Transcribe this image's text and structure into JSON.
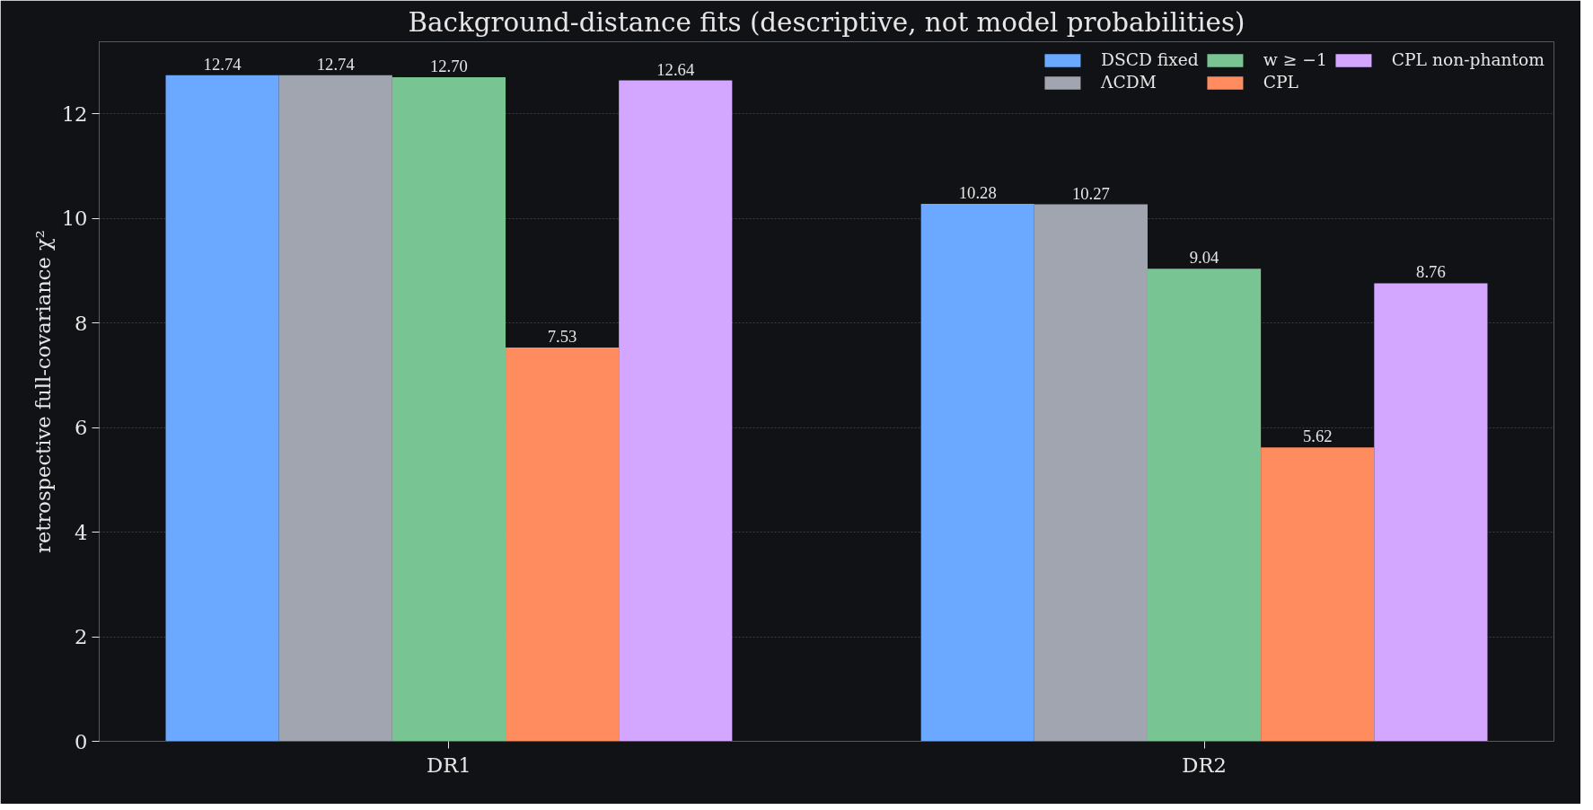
{
  "chart_data": {
    "type": "bar",
    "title": "Background-distance fits (descriptive, not model probabilities)",
    "ylabel": "retrospective full-covariance χ²",
    "categories": [
      "DR1",
      "DR2"
    ],
    "series": [
      {
        "name": "DSCD fixed",
        "color": "#6aa9ff",
        "values": [
          12.74,
          10.28
        ],
        "value_labels": [
          "12.74",
          "10.28"
        ]
      },
      {
        "name": "ΛCDM",
        "color": "#a0a5b0",
        "values": [
          12.74,
          10.27
        ],
        "value_labels": [
          "12.74",
          "10.27"
        ]
      },
      {
        "name": "w ≥ −1",
        "color": "#78c493",
        "values": [
          12.7,
          9.04
        ],
        "value_labels": [
          "12.70",
          "9.04"
        ]
      },
      {
        "name": "CPL",
        "color": "#ff8c5e",
        "values": [
          7.53,
          5.62
        ],
        "value_labels": [
          "7.53",
          "5.62"
        ]
      },
      {
        "name": "CPL non-phantom",
        "color": "#d3a6ff",
        "values": [
          12.64,
          8.76
        ],
        "value_labels": [
          "12.64",
          "8.76"
        ]
      }
    ],
    "ylim": [
      0,
      13.38
    ],
    "yticks": [
      0,
      2,
      4,
      6,
      8,
      10,
      12
    ],
    "grid": "y",
    "legend": "top right"
  }
}
